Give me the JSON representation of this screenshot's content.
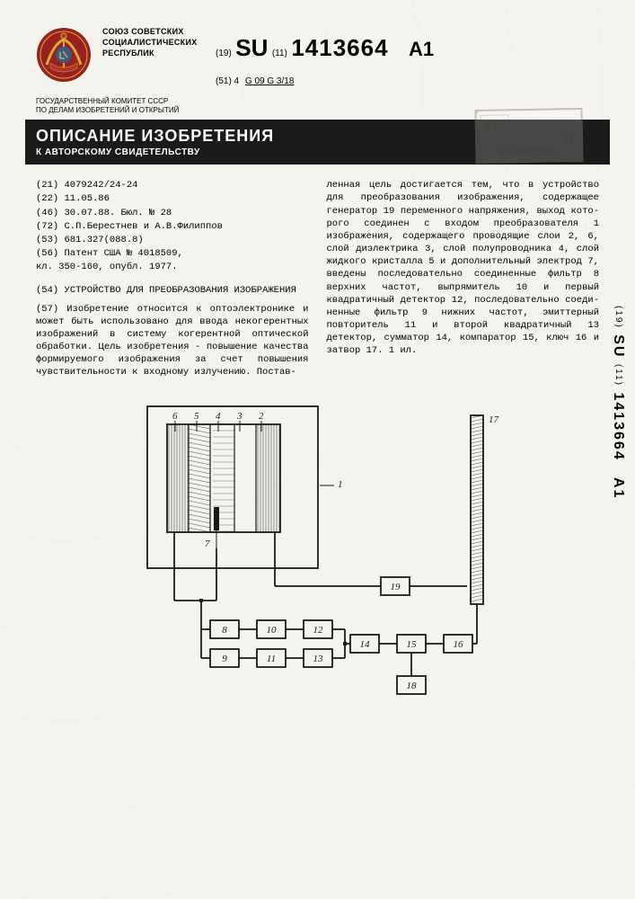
{
  "header": {
    "union_lines": [
      "СОЮЗ СОВЕТСКИХ",
      "СОЦИАЛИСТИЧЕСКИХ",
      "РЕСПУБЛИК"
    ],
    "committee_lines": [
      "ГОСУДАРСТВЕННЫЙ КОМИТЕТ СССР",
      "ПО ДЕЛАМ ИЗОБРЕТЕНИЙ И ОТКРЫТИЙ"
    ],
    "pub_prefix": "(19)",
    "pub_code": "SU",
    "pub_inner": "(11)",
    "pub_number": "1413664",
    "pub_suffix": "A1",
    "ipc_prefix": "(51) 4",
    "ipc_code": "G 09 G 3/18"
  },
  "title_bar": {
    "main": "ОПИСАНИЕ ИЗОБРЕТЕНИЯ",
    "sub": "К АВТОРСКОМУ СВИДЕТЕЛЬСТВУ"
  },
  "stamp": {
    "text": "БИБЛИОТЕКА",
    "n1": "13",
    "n2": "13"
  },
  "spine": {
    "prefix": "(19)",
    "code": "SU",
    "inner": "(11)",
    "number": "1413664",
    "suffix": "A1"
  },
  "biblio": {
    "b21": "(21) 4079242/24-24",
    "b22": "(22) 11.05.86",
    "b46": "(46) 30.07.88. Бюл. № 28",
    "b72": "(72) С.П.Берестнев и А.В.Филиппов",
    "b53": "(53) 681.327(088.8)",
    "b56a": "(56) Патент США № 4018509,",
    "b56b": "кл. 350-160, опубл. 1977."
  },
  "invention": {
    "title_prefix": "(54)",
    "title": "УСТРОЙСТВО ДЛЯ ПРЕОБРАЗОВАНИЯ ИЗОБРАЖЕНИЯ"
  },
  "abstract": {
    "left": "(57) Изобретение относится к опто­электронике и может быть использова­но для ввода некогерентных изображе­ний в систему когерентной оптической обработки. Цель изобретения - повы­шение качества формируемого изобра­жения за счет повышения чувствитель­ности к входному излучению. Постав-",
    "right": "ленная цель достигается тем, что в устройство для преобразования изоб­ражения, содержащее генератор 19 переменного напряжения, выход кото­рого соединен с входом преобразова­теля 1 изображения, содержащего про­водящие слои 2, 6, слой диэлектрика 3, слой полупроводника 4, слой жид­кого кристалла 5 и дополнительный электрод 7, введены последовательно соединенные фильтр 8 верхних частот, выпрямитель 10 и первый квадратичный детектор 12, последовательно соеди­ненные фильтр 9 нижних частот, эмит­терный повторитель 11 и второй квадратичный 13 детектор, сумматор 14, компаратор 15, ключ 16 и затвор 17. 1 ил."
  },
  "diagram": {
    "converter_labels": [
      "6",
      "5",
      "4",
      "3",
      "2"
    ],
    "electrode_label": "7",
    "converter_ref": "1",
    "shutter_ref": "17",
    "blocks_top": [
      "8",
      "10",
      "12"
    ],
    "blocks_bot": [
      "9",
      "11",
      "13"
    ],
    "block_14": "14",
    "block_15": "15",
    "block_16": "16",
    "block_18": "18",
    "block_19": "19",
    "box_stroke": "#1a1a1a",
    "line_stroke": "#1a1a1a",
    "bg": "#f5f3ed",
    "hatch_stroke": "#1a1a1a",
    "font_size": 11
  }
}
